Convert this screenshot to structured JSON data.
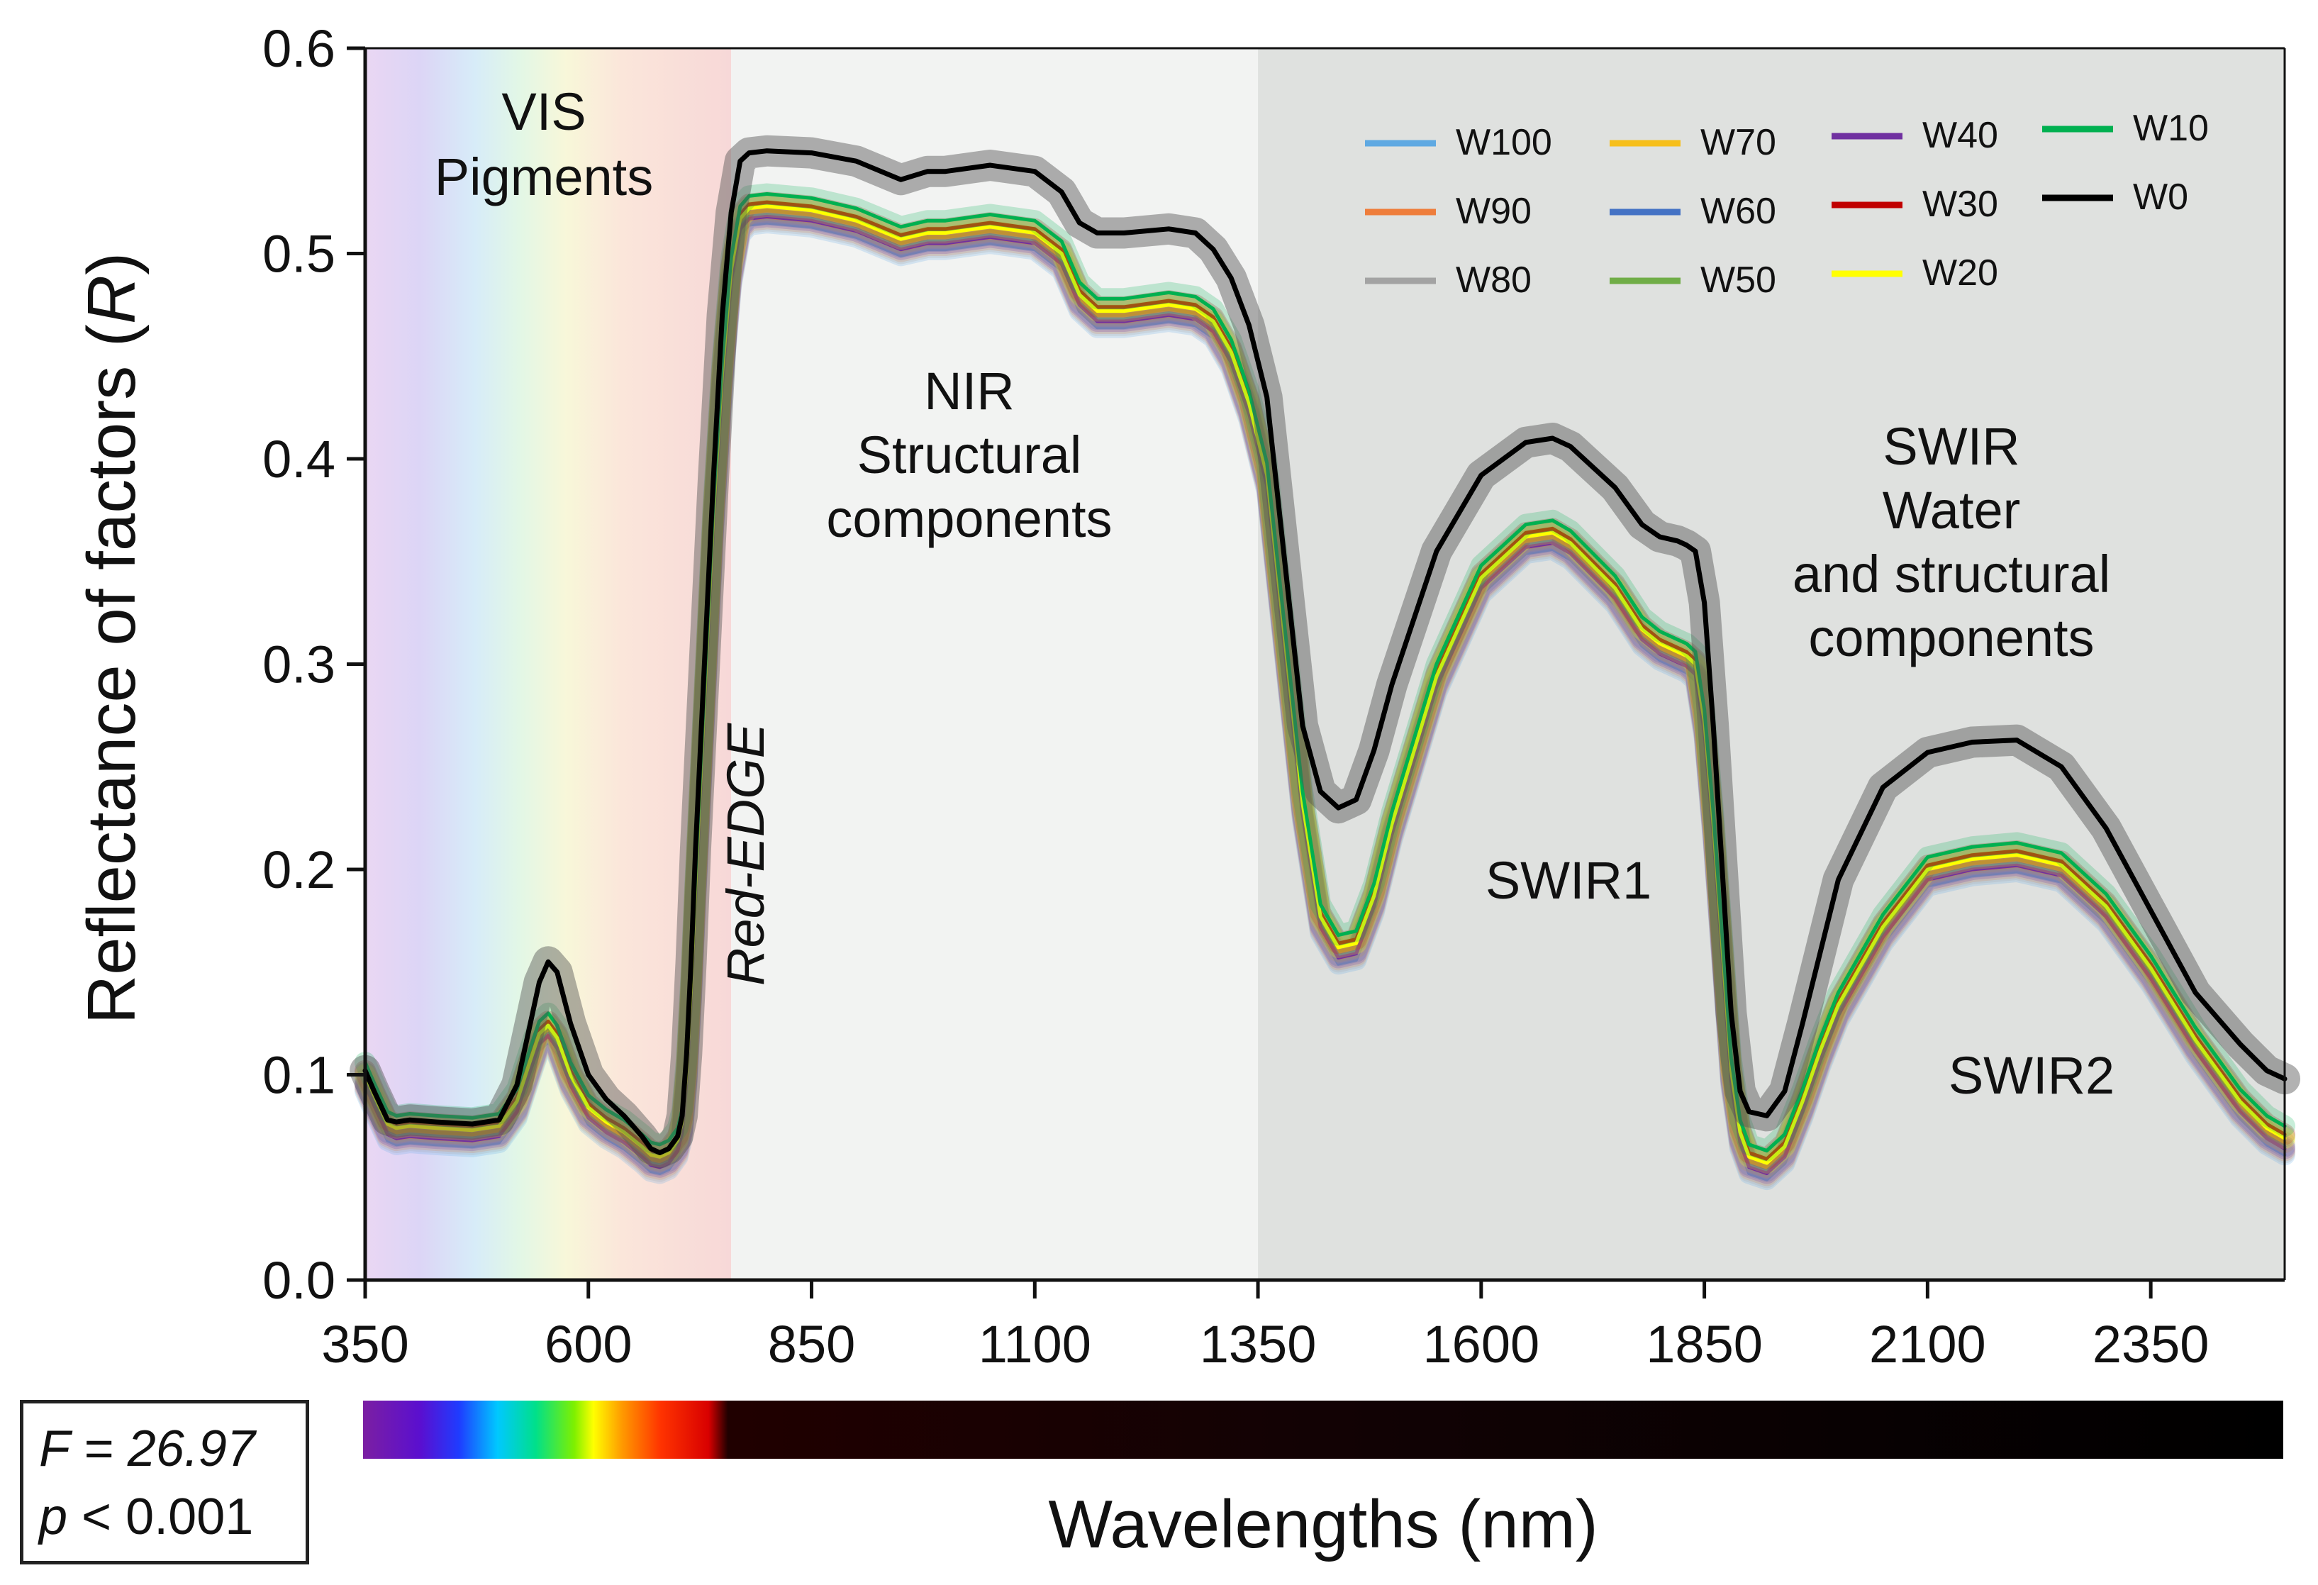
{
  "chart_data": {
    "type": "line",
    "title": "",
    "xlabel": "Wavelengths (nm)",
    "ylabel_prefix": "Reflectance of factors (",
    "ylabel_symbol": "R",
    "ylabel_suffix": ")",
    "xlim": [
      350,
      2500
    ],
    "ylim": [
      0.0,
      0.6
    ],
    "xticks": [
      "350",
      "600",
      "850",
      "1100",
      "1350",
      "1600",
      "1850",
      "2100",
      "2350"
    ],
    "yticks": [
      "0.0",
      "0.1",
      "0.2",
      "0.3",
      "0.4",
      "0.5",
      "0.6"
    ],
    "regions": {
      "vis": [
        "VIS",
        "Pigments"
      ],
      "red_edge": "Red-EDGE",
      "nir": [
        "NIR",
        "Structural",
        "components"
      ],
      "swir": [
        "SWIR",
        "Water",
        "and structural",
        "components"
      ],
      "swir1": "SWIR1",
      "swir2": "SWIR2"
    },
    "region_bounds_nm": {
      "vis_end": 760,
      "nir_end": 1350
    },
    "reference_spectrum": {
      "x": [
        350,
        360,
        375,
        385,
        400,
        430,
        470,
        500,
        520,
        535,
        545,
        555,
        565,
        580,
        600,
        620,
        640,
        660,
        670,
        680,
        690,
        700,
        705,
        710,
        715,
        720,
        730,
        740,
        750,
        760,
        770,
        780,
        800,
        850,
        900,
        950,
        980,
        1000,
        1050,
        1100,
        1130,
        1150,
        1170,
        1200,
        1250,
        1280,
        1300,
        1320,
        1340,
        1360,
        1380,
        1400,
        1420,
        1440,
        1460,
        1480,
        1500,
        1550,
        1600,
        1650,
        1680,
        1700,
        1750,
        1780,
        1800,
        1820,
        1830,
        1840,
        1850,
        1860,
        1870,
        1880,
        1890,
        1900,
        1920,
        1940,
        1960,
        1980,
        2000,
        2050,
        2100,
        2150,
        2200,
        2250,
        2300,
        2350,
        2400,
        2450,
        2480,
        2500
      ],
      "y": [
        0.098,
        0.088,
        0.074,
        0.072,
        0.073,
        0.072,
        0.071,
        0.073,
        0.085,
        0.105,
        0.118,
        0.122,
        0.116,
        0.098,
        0.082,
        0.075,
        0.07,
        0.063,
        0.059,
        0.058,
        0.06,
        0.066,
        0.075,
        0.1,
        0.14,
        0.19,
        0.28,
        0.37,
        0.44,
        0.49,
        0.515,
        0.52,
        0.521,
        0.519,
        0.514,
        0.505,
        0.508,
        0.508,
        0.511,
        0.508,
        0.498,
        0.478,
        0.47,
        0.47,
        0.473,
        0.471,
        0.465,
        0.45,
        0.425,
        0.39,
        0.31,
        0.23,
        0.175,
        0.16,
        0.162,
        0.185,
        0.22,
        0.292,
        0.34,
        0.36,
        0.362,
        0.357,
        0.335,
        0.315,
        0.308,
        0.304,
        0.302,
        0.298,
        0.27,
        0.22,
        0.16,
        0.1,
        0.07,
        0.058,
        0.055,
        0.063,
        0.085,
        0.11,
        0.132,
        0.17,
        0.198,
        0.203,
        0.205,
        0.2,
        0.18,
        0.15,
        0.115,
        0.085,
        0.072,
        0.067
      ]
    },
    "series": [
      {
        "name": "W100",
        "color": "#5fa9e2",
        "offset": -0.006
      },
      {
        "name": "W90",
        "color": "#ee7d3b",
        "offset": -0.004
      },
      {
        "name": "W80",
        "color": "#a3a3a3",
        "offset": -0.005
      },
      {
        "name": "W70",
        "color": "#f6bf1c",
        "offset": 0.0
      },
      {
        "name": "W60",
        "color": "#4472c4",
        "offset": -0.002
      },
      {
        "name": "W50",
        "color": "#70ad47",
        "offset": 0.003
      },
      {
        "name": "W40",
        "color": "#7030a0",
        "offset": -0.003
      },
      {
        "name": "W30",
        "color": "#c00000",
        "offset": 0.004
      },
      {
        "name": "W20",
        "color": "#ffff00",
        "offset": 0.002
      },
      {
        "name": "W10",
        "color": "#00b050",
        "offset": 0.008
      },
      {
        "name": "W0",
        "color": "#000000",
        "offset": 0.0,
        "is_control": true,
        "x": [
          350,
          360,
          375,
          385,
          400,
          430,
          470,
          500,
          520,
          535,
          545,
          555,
          565,
          580,
          600,
          620,
          640,
          660,
          670,
          680,
          690,
          700,
          705,
          710,
          715,
          720,
          730,
          740,
          750,
          760,
          770,
          780,
          800,
          850,
          900,
          950,
          980,
          1000,
          1050,
          1100,
          1130,
          1150,
          1170,
          1200,
          1250,
          1280,
          1300,
          1320,
          1340,
          1360,
          1380,
          1400,
          1420,
          1440,
          1460,
          1480,
          1500,
          1550,
          1600,
          1650,
          1680,
          1700,
          1750,
          1780,
          1800,
          1820,
          1830,
          1840,
          1850,
          1860,
          1870,
          1880,
          1890,
          1900,
          1920,
          1940,
          1960,
          1980,
          2000,
          2050,
          2100,
          2150,
          2200,
          2250,
          2300,
          2350,
          2400,
          2450,
          2480,
          2500
        ],
        "y": [
          0.102,
          0.092,
          0.078,
          0.077,
          0.078,
          0.077,
          0.076,
          0.078,
          0.095,
          0.125,
          0.145,
          0.155,
          0.15,
          0.125,
          0.1,
          0.088,
          0.08,
          0.07,
          0.064,
          0.062,
          0.064,
          0.07,
          0.08,
          0.11,
          0.155,
          0.21,
          0.3,
          0.39,
          0.47,
          0.52,
          0.545,
          0.549,
          0.55,
          0.549,
          0.545,
          0.536,
          0.54,
          0.54,
          0.543,
          0.54,
          0.53,
          0.515,
          0.51,
          0.51,
          0.512,
          0.51,
          0.502,
          0.488,
          0.465,
          0.43,
          0.35,
          0.27,
          0.238,
          0.23,
          0.234,
          0.258,
          0.29,
          0.355,
          0.392,
          0.408,
          0.41,
          0.406,
          0.386,
          0.368,
          0.362,
          0.36,
          0.358,
          0.355,
          0.33,
          0.27,
          0.2,
          0.13,
          0.092,
          0.082,
          0.08,
          0.092,
          0.125,
          0.16,
          0.195,
          0.24,
          0.257,
          0.262,
          0.263,
          0.25,
          0.22,
          0.18,
          0.14,
          0.115,
          0.102,
          0.098
        ]
      }
    ]
  },
  "stats": {
    "f_text": "F = 26.97",
    "p_letter": "p",
    "p_rest": " < 0.001"
  }
}
